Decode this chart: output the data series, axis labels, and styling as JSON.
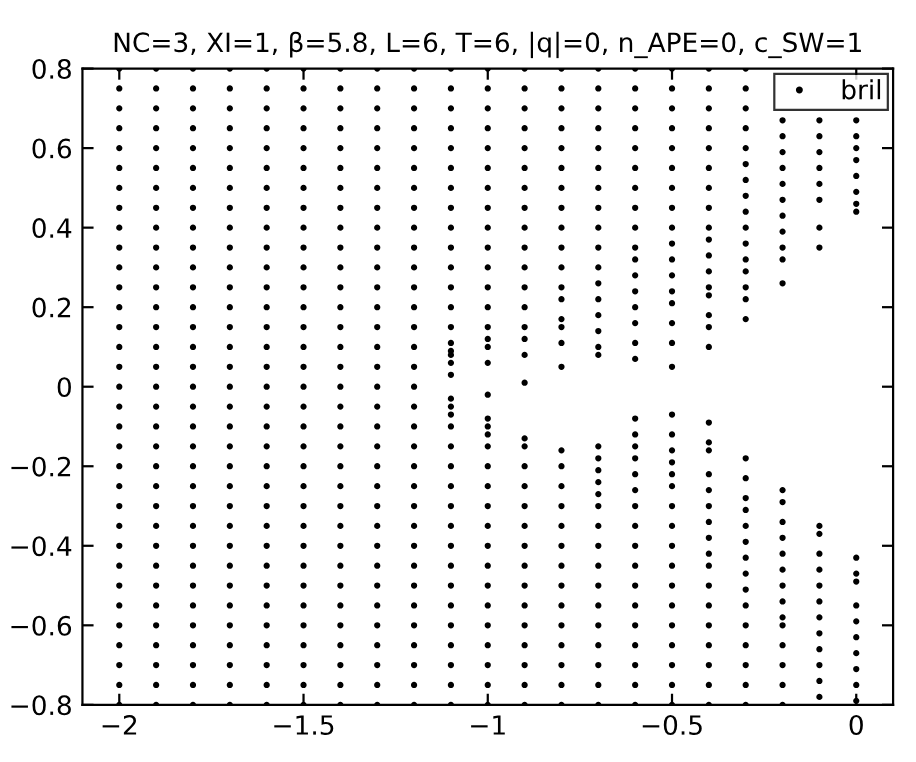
{
  "chart_data": {
    "type": "scatter",
    "title": "NC=3, XI=1, β=5.8, L=6, T=6, |q|=0, n_APE=0, c_SW=1",
    "xlim": [
      -2.1,
      0.1
    ],
    "xticks": [
      {
        "value": -2,
        "label": "−2"
      },
      {
        "value": -1.5,
        "label": "−1.5"
      },
      {
        "value": -1,
        "label": "−1"
      },
      {
        "value": -0.5,
        "label": "−0.5"
      },
      0
    ],
    "ylim": [
      -0.8,
      0.8
    ],
    "yticks": [
      {
        "value": -0.8,
        "label": "−0.8"
      },
      {
        "value": -0.6,
        "label": "−0.6"
      },
      {
        "value": -0.4,
        "label": "−0.4"
      },
      {
        "value": -0.2,
        "label": "−0.2"
      },
      0,
      0.2,
      0.4,
      0.6,
      0.8
    ],
    "grid": false,
    "legend": "top right",
    "marker": "circle",
    "series": [
      {
        "name": "bril",
        "color": "#000000",
        "x": [
          -2,
          -2,
          -2,
          -2,
          -2,
          -2,
          -2,
          -2,
          -2,
          -2,
          -2,
          -2,
          -2,
          -2,
          -2,
          -2,
          -2,
          -2,
          -2,
          -2,
          -2,
          -2,
          -2,
          -2,
          -2,
          -2,
          -2,
          -2,
          -2,
          -2,
          -2,
          -2,
          -2,
          -1.9,
          -1.9,
          -1.9,
          -1.9,
          -1.9,
          -1.9,
          -1.9,
          -1.9,
          -1.9,
          -1.9,
          -1.9,
          -1.9,
          -1.9,
          -1.9,
          -1.9,
          -1.9,
          -1.9,
          -1.9,
          -1.9,
          -1.9,
          -1.9,
          -1.9,
          -1.9,
          -1.9,
          -1.9,
          -1.9,
          -1.9,
          -1.9,
          -1.9,
          -1.9,
          -1.9,
          -1.9,
          -1.9,
          -1.8,
          -1.8,
          -1.8,
          -1.8,
          -1.8,
          -1.8,
          -1.8,
          -1.8,
          -1.8,
          -1.8,
          -1.8,
          -1.8,
          -1.8,
          -1.8,
          -1.8,
          -1.8,
          -1.8,
          -1.8,
          -1.8,
          -1.8,
          -1.8,
          -1.8,
          -1.8,
          -1.8,
          -1.8,
          -1.8,
          -1.8,
          -1.8,
          -1.8,
          -1.8,
          -1.8,
          -1.8,
          -1.8,
          -1.7,
          -1.7,
          -1.7,
          -1.7,
          -1.7,
          -1.7,
          -1.7,
          -1.7,
          -1.7,
          -1.7,
          -1.7,
          -1.7,
          -1.7,
          -1.7,
          -1.7,
          -1.7,
          -1.7,
          -1.7,
          -1.7,
          -1.7,
          -1.7,
          -1.7,
          -1.7,
          -1.7,
          -1.7,
          -1.7,
          -1.7,
          -1.7,
          -1.7,
          -1.7,
          -1.7,
          -1.7,
          -1.7,
          -1.6,
          -1.6,
          -1.6,
          -1.6,
          -1.6,
          -1.6,
          -1.6,
          -1.6,
          -1.6,
          -1.6,
          -1.6,
          -1.6,
          -1.6,
          -1.6,
          -1.6,
          -1.6,
          -1.6,
          -1.6,
          -1.6,
          -1.6,
          -1.6,
          -1.6,
          -1.6,
          -1.6,
          -1.6,
          -1.6,
          -1.6,
          -1.6,
          -1.6,
          -1.6,
          -1.6,
          -1.6,
          -1.6,
          -1.5,
          -1.5,
          -1.5,
          -1.5,
          -1.5,
          -1.5,
          -1.5,
          -1.5,
          -1.5,
          -1.5,
          -1.5,
          -1.5,
          -1.5,
          -1.5,
          -1.5,
          -1.5,
          -1.5,
          -1.5,
          -1.5,
          -1.5,
          -1.5,
          -1.5,
          -1.5,
          -1.5,
          -1.5,
          -1.5,
          -1.5,
          -1.5,
          -1.5,
          -1.5,
          -1.5,
          -1.5,
          -1.5,
          -1.4,
          -1.4,
          -1.4,
          -1.4,
          -1.4,
          -1.4,
          -1.4,
          -1.4,
          -1.4,
          -1.4,
          -1.4,
          -1.4,
          -1.4,
          -1.4,
          -1.4,
          -1.4,
          -1.4,
          -1.4,
          -1.4,
          -1.4,
          -1.4,
          -1.4,
          -1.4,
          -1.4,
          -1.4,
          -1.4,
          -1.4,
          -1.4,
          -1.4,
          -1.4,
          -1.4,
          -1.4,
          -1.4,
          -1.3,
          -1.3,
          -1.3,
          -1.3,
          -1.3,
          -1.3,
          -1.3,
          -1.3,
          -1.3,
          -1.3,
          -1.3,
          -1.3,
          -1.3,
          -1.3,
          -1.3,
          -1.3,
          -1.3,
          -1.3,
          -1.3,
          -1.3,
          -1.3,
          -1.3,
          -1.3,
          -1.3,
          -1.3,
          -1.3,
          -1.3,
          -1.3,
          -1.3,
          -1.3,
          -1.3,
          -1.3,
          -1.3,
          -1.2,
          -1.2,
          -1.2,
          -1.2,
          -1.2,
          -1.2,
          -1.2,
          -1.2,
          -1.2,
          -1.2,
          -1.2,
          -1.2,
          -1.2,
          -1.2,
          -1.2,
          -1.2,
          -1.2,
          -1.2,
          -1.2,
          -1.2,
          -1.2,
          -1.2,
          -1.2,
          -1.2,
          -1.2,
          -1.2,
          -1.2,
          -1.2,
          -1.2,
          -1.2,
          -1.2,
          -1.2,
          -1.2,
          -1.1,
          -1.1,
          -1.1,
          -1.1,
          -1.1,
          -1.1,
          -1.1,
          -1.1,
          -1.1,
          -1.1,
          -1.1,
          -1.1,
          -1.1,
          -1.1,
          -1.1,
          -1.1,
          -1.1,
          -1.1,
          -1.1,
          -1.1,
          -1.1,
          -1.1,
          -1.1,
          -1.1,
          -1.1,
          -1.1,
          -1.1,
          -1.1,
          -1.1,
          -1.1,
          -1.1,
          -1.1,
          -1.1,
          -1.1,
          -1.1,
          -1.1,
          -1.1,
          -1,
          -1,
          -1,
          -1,
          -1,
          -1,
          -1,
          -1,
          -1,
          -1,
          -1,
          -1,
          -1,
          -1,
          -1,
          -1,
          -1,
          -1,
          -1,
          -1,
          -1,
          -1,
          -1,
          -1,
          -1,
          -1,
          -1,
          -1,
          -1,
          -1,
          -1,
          -1,
          -1,
          -1,
          -1,
          -0.9,
          -0.9,
          -0.9,
          -0.9,
          -0.9,
          -0.9,
          -0.9,
          -0.9,
          -0.9,
          -0.9,
          -0.9,
          -0.9,
          -0.9,
          -0.9,
          -0.9,
          -0.9,
          -0.9,
          -0.9,
          -0.9,
          -0.9,
          -0.9,
          -0.9,
          -0.9,
          -0.9,
          -0.9,
          -0.9,
          -0.9,
          -0.9,
          -0.9,
          -0.9,
          -0.9,
          -0.9,
          -0.8,
          -0.8,
          -0.8,
          -0.8,
          -0.8,
          -0.8,
          -0.8,
          -0.8,
          -0.8,
          -0.8,
          -0.8,
          -0.8,
          -0.8,
          -0.8,
          -0.8,
          -0.8,
          -0.8,
          -0.8,
          -0.8,
          -0.8,
          -0.8,
          -0.8,
          -0.8,
          -0.8,
          -0.8,
          -0.8,
          -0.8,
          -0.8,
          -0.8,
          -0.8,
          -0.8,
          -0.7,
          -0.7,
          -0.7,
          -0.7,
          -0.7,
          -0.7,
          -0.7,
          -0.7,
          -0.7,
          -0.7,
          -0.7,
          -0.7,
          -0.7,
          -0.7,
          -0.7,
          -0.7,
          -0.7,
          -0.7,
          -0.7,
          -0.7,
          -0.7,
          -0.7,
          -0.7,
          -0.7,
          -0.7,
          -0.7,
          -0.7,
          -0.7,
          -0.7,
          -0.7,
          -0.7,
          -0.7,
          -0.7,
          -0.6,
          -0.6,
          -0.6,
          -0.6,
          -0.6,
          -0.6,
          -0.6,
          -0.6,
          -0.6,
          -0.6,
          -0.6,
          -0.6,
          -0.6,
          -0.6,
          -0.6,
          -0.6,
          -0.6,
          -0.6,
          -0.6,
          -0.6,
          -0.6,
          -0.6,
          -0.6,
          -0.6,
          -0.6,
          -0.6,
          -0.6,
          -0.6,
          -0.6,
          -0.6,
          -0.6,
          -0.6,
          -0.6,
          -0.6,
          -0.5,
          -0.5,
          -0.5,
          -0.5,
          -0.5,
          -0.5,
          -0.5,
          -0.5,
          -0.5,
          -0.5,
          -0.5,
          -0.5,
          -0.5,
          -0.5,
          -0.5,
          -0.5,
          -0.5,
          -0.5,
          -0.5,
          -0.5,
          -0.5,
          -0.5,
          -0.5,
          -0.5,
          -0.5,
          -0.5,
          -0.5,
          -0.5,
          -0.5,
          -0.5,
          -0.5,
          -0.5,
          -0.5,
          -0.5,
          -0.4,
          -0.4,
          -0.4,
          -0.4,
          -0.4,
          -0.4,
          -0.4,
          -0.4,
          -0.4,
          -0.4,
          -0.4,
          -0.4,
          -0.4,
          -0.4,
          -0.4,
          -0.4,
          -0.4,
          -0.4,
          -0.4,
          -0.4,
          -0.4,
          -0.4,
          -0.4,
          -0.4,
          -0.4,
          -0.4,
          -0.4,
          -0.4,
          -0.4,
          -0.4,
          -0.4,
          -0.4,
          -0.4,
          -0.4,
          -0.3,
          -0.3,
          -0.3,
          -0.3,
          -0.3,
          -0.3,
          -0.3,
          -0.3,
          -0.3,
          -0.3,
          -0.3,
          -0.3,
          -0.3,
          -0.3,
          -0.3,
          -0.3,
          -0.3,
          -0.3,
          -0.3,
          -0.3,
          -0.3,
          -0.3,
          -0.3,
          -0.3,
          -0.3,
          -0.3,
          -0.3,
          -0.3,
          -0.3,
          -0.3,
          -0.3,
          -0.2,
          -0.2,
          -0.2,
          -0.2,
          -0.2,
          -0.2,
          -0.2,
          -0.2,
          -0.2,
          -0.2,
          -0.2,
          -0.2,
          -0.2,
          -0.2,
          -0.2,
          -0.2,
          -0.2,
          -0.2,
          -0.2,
          -0.2,
          -0.2,
          -0.2,
          -0.2,
          -0.2,
          -0.2,
          -0.1,
          -0.1,
          -0.1,
          -0.1,
          -0.1,
          -0.1,
          -0.1,
          -0.1,
          -0.1,
          -0.1,
          -0.1,
          -0.1,
          -0.1,
          -0.1,
          -0.1,
          -0.1,
          -0.1,
          -0.1,
          -0.1,
          -0.1,
          0,
          0,
          0,
          0,
          0,
          0,
          0,
          0,
          0,
          0,
          0,
          0,
          0,
          0,
          0,
          0,
          0,
          0
        ],
        "values": [
          -0.8,
          -0.75,
          -0.7,
          -0.65,
          -0.6,
          -0.55,
          -0.5,
          -0.45,
          -0.4,
          -0.35,
          -0.3,
          -0.25,
          -0.2,
          -0.15,
          -0.1,
          -0.05,
          0,
          0.05,
          0.1,
          0.15,
          0.2,
          0.25,
          0.3,
          0.35,
          0.4,
          0.45,
          0.5,
          0.55,
          0.6,
          0.65,
          0.7,
          0.75,
          0.8,
          -0.8,
          -0.75,
          -0.7,
          -0.65,
          -0.6,
          -0.55,
          -0.5,
          -0.45,
          -0.4,
          -0.35,
          -0.3,
          -0.25,
          -0.2,
          -0.15,
          -0.1,
          -0.05,
          0,
          0.05,
          0.1,
          0.15,
          0.2,
          0.25,
          0.3,
          0.35,
          0.4,
          0.45,
          0.5,
          0.55,
          0.6,
          0.65,
          0.7,
          0.75,
          0.8,
          -0.8,
          -0.75,
          -0.7,
          -0.65,
          -0.6,
          -0.55,
          -0.5,
          -0.45,
          -0.4,
          -0.35,
          -0.3,
          -0.25,
          -0.2,
          -0.15,
          -0.1,
          -0.05,
          0,
          0.05,
          0.1,
          0.15,
          0.2,
          0.25,
          0.3,
          0.35,
          0.4,
          0.45,
          0.5,
          0.55,
          0.6,
          0.65,
          0.7,
          0.75,
          0.8,
          -0.8,
          -0.75,
          -0.7,
          -0.65,
          -0.6,
          -0.55,
          -0.5,
          -0.45,
          -0.4,
          -0.35,
          -0.3,
          -0.25,
          -0.2,
          -0.15,
          -0.1,
          -0.05,
          0,
          0.05,
          0.1,
          0.15,
          0.2,
          0.25,
          0.3,
          0.35,
          0.4,
          0.45,
          0.5,
          0.55,
          0.6,
          0.65,
          0.7,
          0.75,
          0.8,
          -0.8,
          -0.75,
          -0.7,
          -0.65,
          -0.6,
          -0.55,
          -0.5,
          -0.45,
          -0.4,
          -0.35,
          -0.3,
          -0.25,
          -0.2,
          -0.15,
          -0.1,
          -0.05,
          0,
          0.05,
          0.1,
          0.15,
          0.2,
          0.25,
          0.3,
          0.35,
          0.4,
          0.45,
          0.5,
          0.55,
          0.6,
          0.65,
          0.7,
          0.75,
          0.8,
          -0.8,
          -0.75,
          -0.7,
          -0.65,
          -0.6,
          -0.55,
          -0.5,
          -0.45,
          -0.4,
          -0.35,
          -0.3,
          -0.25,
          -0.2,
          -0.15,
          -0.1,
          -0.05,
          0,
          0.05,
          0.1,
          0.15,
          0.2,
          0.25,
          0.3,
          0.35,
          0.4,
          0.45,
          0.5,
          0.55,
          0.6,
          0.65,
          0.7,
          0.75,
          0.8,
          -0.8,
          -0.75,
          -0.7,
          -0.65,
          -0.6,
          -0.55,
          -0.5,
          -0.45,
          -0.4,
          -0.35,
          -0.3,
          -0.25,
          -0.2,
          -0.15,
          -0.1,
          -0.05,
          0,
          0.05,
          0.1,
          0.15,
          0.2,
          0.25,
          0.3,
          0.35,
          0.4,
          0.45,
          0.5,
          0.55,
          0.6,
          0.65,
          0.7,
          0.75,
          0.8,
          -0.8,
          -0.75,
          -0.7,
          -0.65,
          -0.6,
          -0.55,
          -0.5,
          -0.45,
          -0.4,
          -0.35,
          -0.3,
          -0.25,
          -0.2,
          -0.15,
          -0.1,
          -0.05,
          0,
          0.05,
          0.1,
          0.15,
          0.2,
          0.25,
          0.3,
          0.35,
          0.4,
          0.45,
          0.5,
          0.55,
          0.6,
          0.65,
          0.7,
          0.75,
          0.8,
          -0.8,
          -0.75,
          -0.7,
          -0.65,
          -0.6,
          -0.55,
          -0.5,
          -0.45,
          -0.4,
          -0.35,
          -0.3,
          -0.25,
          -0.2,
          -0.15,
          -0.1,
          -0.05,
          0,
          0.05,
          0.1,
          0.15,
          0.2,
          0.25,
          0.3,
          0.35,
          0.4,
          0.45,
          0.5,
          0.55,
          0.6,
          0.65,
          0.7,
          0.75,
          0.8,
          0.8,
          0.75,
          0.7,
          0.65,
          0.6,
          0.55,
          0.5,
          0.45,
          0.4,
          0.35,
          0.3,
          0.25,
          0.2,
          0.15,
          0.11,
          0.09,
          0.08,
          0.06,
          0.03,
          -0.03,
          -0.05,
          -0.07,
          -0.1,
          -0.15,
          -0.2,
          -0.25,
          -0.3,
          -0.35,
          -0.4,
          -0.45,
          -0.5,
          -0.55,
          -0.6,
          -0.65,
          -0.7,
          -0.75,
          -0.8,
          0.8,
          0.75,
          0.7,
          0.65,
          0.6,
          0.55,
          0.5,
          0.45,
          0.4,
          0.35,
          0.3,
          0.25,
          0.2,
          0.15,
          0.12,
          0.1,
          0.06,
          -0.02,
          -0.08,
          -0.1,
          -0.12,
          -0.15,
          -0.2,
          -0.25,
          -0.3,
          -0.35,
          -0.4,
          -0.45,
          -0.5,
          -0.55,
          -0.6,
          -0.65,
          -0.7,
          -0.75,
          -0.8,
          0.8,
          0.75,
          0.7,
          0.65,
          0.6,
          0.55,
          0.5,
          0.45,
          0.4,
          0.35,
          0.3,
          0.25,
          0.2,
          0.15,
          0.12,
          0.08,
          0.01,
          -0.13,
          -0.15,
          -0.2,
          -0.25,
          -0.3,
          -0.35,
          -0.4,
          -0.45,
          -0.5,
          -0.55,
          -0.6,
          -0.65,
          -0.7,
          -0.75,
          -0.8,
          0.8,
          0.75,
          0.7,
          0.65,
          0.6,
          0.55,
          0.5,
          0.45,
          0.4,
          0.35,
          0.3,
          0.25,
          0.22,
          0.17,
          0.15,
          0.11,
          0.05,
          -0.16,
          -0.2,
          -0.25,
          -0.3,
          -0.35,
          -0.4,
          -0.45,
          -0.5,
          -0.55,
          -0.6,
          -0.65,
          -0.7,
          -0.75,
          -0.8,
          0.8,
          0.75,
          0.7,
          0.65,
          0.6,
          0.55,
          0.5,
          0.45,
          0.4,
          0.35,
          0.3,
          0.26,
          0.22,
          0.18,
          0.14,
          0.1,
          0.08,
          -0.15,
          -0.18,
          -0.21,
          -0.24,
          -0.27,
          -0.3,
          -0.35,
          -0.4,
          -0.45,
          -0.5,
          -0.55,
          -0.6,
          -0.65,
          -0.7,
          -0.75,
          -0.8,
          0.8,
          0.75,
          0.7,
          0.65,
          0.6,
          0.55,
          0.5,
          0.45,
          0.4,
          0.35,
          0.32,
          0.28,
          0.24,
          0.2,
          0.16,
          0.11,
          0.07,
          -0.08,
          -0.12,
          -0.15,
          -0.18,
          -0.22,
          -0.26,
          -0.3,
          -0.35,
          -0.4,
          -0.45,
          -0.5,
          -0.55,
          -0.6,
          -0.65,
          -0.7,
          -0.75,
          -0.8,
          0.8,
          0.75,
          0.7,
          0.65,
          0.6,
          0.55,
          0.5,
          0.45,
          0.4,
          0.36,
          0.32,
          0.28,
          0.24,
          0.21,
          0.16,
          0.11,
          0.05,
          -0.07,
          -0.12,
          -0.16,
          -0.19,
          -0.22,
          -0.25,
          -0.3,
          -0.35,
          -0.4,
          -0.45,
          -0.5,
          -0.55,
          -0.6,
          -0.65,
          -0.7,
          -0.75,
          -0.8,
          0.8,
          0.75,
          0.7,
          0.65,
          0.6,
          0.55,
          0.5,
          0.45,
          0.4,
          0.37,
          0.33,
          0.29,
          0.25,
          0.23,
          0.18,
          0.15,
          0.1,
          -0.09,
          -0.14,
          -0.16,
          -0.22,
          -0.26,
          -0.3,
          -0.34,
          -0.38,
          -0.42,
          -0.45,
          -0.5,
          -0.55,
          -0.6,
          -0.65,
          -0.7,
          -0.75,
          -0.8,
          0.8,
          0.75,
          0.7,
          0.65,
          0.6,
          0.56,
          0.52,
          0.48,
          0.44,
          0.4,
          0.36,
          0.32,
          0.29,
          0.25,
          0.22,
          0.17,
          -0.18,
          -0.23,
          -0.28,
          -0.31,
          -0.35,
          -0.39,
          -0.43,
          -0.47,
          -0.51,
          -0.55,
          -0.6,
          -0.65,
          -0.7,
          -0.75,
          -0.8,
          0.67,
          0.63,
          0.59,
          0.55,
          0.51,
          0.47,
          0.43,
          0.39,
          0.35,
          0.32,
          0.26,
          -0.26,
          -0.29,
          -0.34,
          -0.38,
          -0.42,
          -0.46,
          -0.5,
          -0.54,
          -0.58,
          -0.6,
          -0.65,
          -0.7,
          -0.75,
          -0.8,
          0.67,
          0.63,
          0.59,
          0.55,
          0.51,
          0.47,
          0.4,
          0.35,
          -0.35,
          -0.37,
          -0.42,
          -0.46,
          -0.5,
          -0.54,
          -0.58,
          -0.62,
          -0.66,
          -0.7,
          -0.74,
          -0.78,
          0.67,
          0.63,
          0.6,
          0.57,
          0.53,
          0.49,
          0.46,
          0.44,
          -0.43,
          -0.47,
          -0.49,
          -0.55,
          -0.59,
          -0.63,
          -0.67,
          -0.71,
          -0.75,
          -0.79
        ]
      }
    ]
  }
}
